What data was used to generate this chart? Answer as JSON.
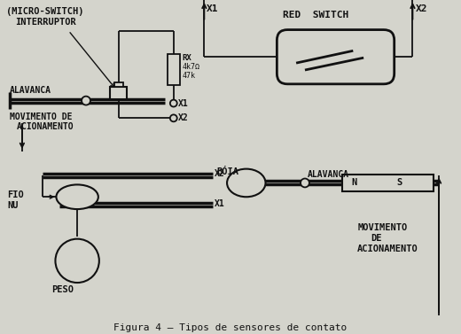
{
  "bg_color": "#d4d4cc",
  "line_color": "#111111",
  "title": "Figura 4 – Tipos de sensores de contato",
  "texts": {
    "micro_switch_title": "(MICRO-SWITCH)",
    "interruptor": "INTERRUPTOR",
    "alavanca1": "ALAVANCA",
    "movimento_de": "MOVIMENTO DE",
    "acionamento1": "ACIONAMENTO",
    "rx": "RX",
    "rx_val1": "4k7Ω",
    "rx_val2": "47k",
    "x1": "X1",
    "x2": "X2",
    "red_switch": "RED  SWITCH",
    "fio_nu": "FIO\nNU",
    "peso": "PESO",
    "boia": "BÓIA",
    "alavanca2": "ALAVANCA",
    "n_label": "N",
    "s_label": "S",
    "movimento2_1": "MOVIMENTO",
    "movimento2_2": "DE",
    "movimento2_3": "ACIONAMENTO"
  }
}
